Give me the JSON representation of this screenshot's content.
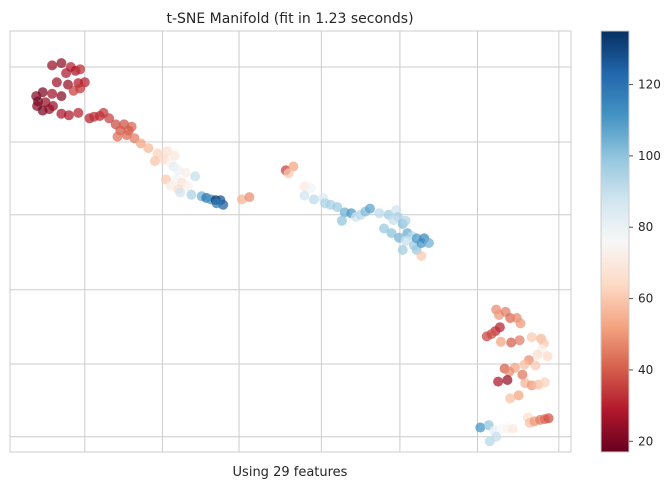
{
  "chart_data": {
    "type": "scatter",
    "title": "t-SNE Manifold (fit in 1.23 seconds)",
    "xlabel": "Using 29 features",
    "ylabel": "",
    "grid": true,
    "xlim": [
      0,
      60
    ],
    "ylim": [
      0,
      55
    ],
    "xgrid": [
      8,
      16.3,
      24.5,
      33.3,
      41.7,
      50,
      58.7
    ],
    "ygrid": [
      2,
      11.5,
      21.2,
      31,
      40.5,
      50.3
    ],
    "colorbar": {
      "min": 17,
      "max": 135,
      "ticks": [
        20,
        40,
        60,
        80,
        100,
        120
      ],
      "colors": [
        "#67001f",
        "#b2182b",
        "#d6604d",
        "#f4a582",
        "#fddbc7",
        "#f7f7f7",
        "#d1e5f0",
        "#92c5de",
        "#4393c3",
        "#2166ac",
        "#053061"
      ]
    },
    "points": [
      [
        4.5,
        50.5,
        25
      ],
      [
        5.5,
        50.8,
        23
      ],
      [
        6.5,
        50.3,
        30
      ],
      [
        7.0,
        49.8,
        27
      ],
      [
        7.5,
        50.0,
        32
      ],
      [
        6.0,
        49.5,
        28
      ],
      [
        5.0,
        48.3,
        26
      ],
      [
        6.2,
        48.0,
        24
      ],
      [
        7.3,
        48.2,
        29
      ],
      [
        8.0,
        48.3,
        30
      ],
      [
        7.5,
        47.5,
        33
      ],
      [
        6.8,
        47.2,
        35
      ],
      [
        5.5,
        46.5,
        22
      ],
      [
        4.5,
        46.8,
        26
      ],
      [
        3.5,
        47.0,
        20
      ],
      [
        2.8,
        46.5,
        21
      ],
      [
        3.0,
        45.8,
        19
      ],
      [
        3.8,
        45.7,
        24
      ],
      [
        2.9,
        45.2,
        22
      ],
      [
        3.5,
        44.6,
        19
      ],
      [
        4.2,
        44.8,
        23
      ],
      [
        4.6,
        45.2,
        25
      ],
      [
        5.5,
        44.2,
        27
      ],
      [
        6.3,
        44.0,
        28
      ],
      [
        7.3,
        44.3,
        30
      ],
      [
        8.5,
        43.6,
        30
      ],
      [
        9.0,
        43.8,
        32
      ],
      [
        9.6,
        43.9,
        31
      ],
      [
        10.0,
        44.3,
        33
      ],
      [
        10.6,
        43.6,
        35
      ],
      [
        11.3,
        42.8,
        37
      ],
      [
        12.2,
        42.8,
        38
      ],
      [
        13.0,
        42.5,
        41
      ],
      [
        12.7,
        42.0,
        40
      ],
      [
        11.8,
        42.0,
        39
      ],
      [
        12.5,
        41.4,
        42
      ],
      [
        11.5,
        41.2,
        43
      ],
      [
        13.3,
        41.0,
        45
      ],
      [
        14.0,
        40.3,
        52
      ],
      [
        14.8,
        39.7,
        56
      ],
      [
        15.8,
        39.0,
        62
      ],
      [
        16.8,
        39.3,
        66
      ],
      [
        17.6,
        38.7,
        69
      ],
      [
        16.5,
        38.2,
        64
      ],
      [
        15.5,
        38.0,
        59
      ],
      [
        17.2,
        37.8,
        74
      ],
      [
        17.5,
        37.3,
        82
      ],
      [
        18.0,
        36.8,
        79
      ],
      [
        18.8,
        36.5,
        72
      ],
      [
        19.8,
        36.0,
        90
      ],
      [
        17.8,
        35.6,
        78
      ],
      [
        16.7,
        35.6,
        60
      ],
      [
        18.4,
        35.2,
        67
      ],
      [
        17.2,
        34.8,
        71
      ],
      [
        18.0,
        34.3,
        65
      ],
      [
        19.0,
        34.7,
        73
      ],
      [
        18.2,
        33.9,
        88
      ],
      [
        19.4,
        33.6,
        95
      ],
      [
        20.5,
        33.4,
        105
      ],
      [
        21.0,
        33.2,
        120
      ],
      [
        21.5,
        33.0,
        112
      ],
      [
        22.0,
        32.9,
        135
      ],
      [
        22.5,
        32.9,
        128
      ],
      [
        22.8,
        32.3,
        125
      ],
      [
        22.1,
        32.5,
        118
      ],
      [
        24.8,
        33.0,
        55
      ],
      [
        25.6,
        33.3,
        48
      ],
      [
        29.5,
        36.8,
        35
      ],
      [
        30.3,
        37.3,
        52
      ],
      [
        29.8,
        36.4,
        60
      ],
      [
        31.5,
        34.7,
        70
      ],
      [
        32.2,
        34.5,
        78
      ],
      [
        31.5,
        33.5,
        88
      ],
      [
        32.5,
        33.0,
        92
      ],
      [
        33.5,
        33.2,
        85
      ],
      [
        33.7,
        32.5,
        95
      ],
      [
        34.3,
        32.3,
        96
      ],
      [
        35.0,
        32.0,
        98
      ],
      [
        35.8,
        31.3,
        105
      ],
      [
        36.5,
        31.2,
        110
      ],
      [
        35.5,
        30.2,
        100
      ],
      [
        37.0,
        30.7,
        88
      ],
      [
        37.5,
        31.0,
        93
      ],
      [
        38.0,
        31.4,
        102
      ],
      [
        38.5,
        31.8,
        108
      ],
      [
        39.5,
        31.2,
        92
      ],
      [
        40.5,
        31.0,
        97
      ],
      [
        41.3,
        31.6,
        88
      ],
      [
        41.5,
        30.7,
        96
      ],
      [
        41.0,
        30.3,
        90
      ],
      [
        42.0,
        29.8,
        102
      ],
      [
        42.3,
        30.2,
        94
      ],
      [
        40.0,
        29.2,
        99
      ],
      [
        40.8,
        28.6,
        101
      ],
      [
        41.6,
        28.0,
        104
      ],
      [
        42.5,
        28.6,
        106
      ],
      [
        43.0,
        28.2,
        92
      ],
      [
        42.3,
        27.6,
        90
      ],
      [
        43.2,
        27.0,
        98
      ],
      [
        42.0,
        26.4,
        97
      ],
      [
        43.5,
        26.4,
        99
      ],
      [
        44.0,
        27.3,
        112
      ],
      [
        43.5,
        27.9,
        110
      ],
      [
        44.3,
        27.9,
        115
      ],
      [
        44.8,
        27.3,
        105
      ],
      [
        44.0,
        25.6,
        60
      ],
      [
        52.0,
        18.6,
        48
      ],
      [
        52.3,
        17.9,
        50
      ],
      [
        53.0,
        18.3,
        45
      ],
      [
        53.5,
        17.5,
        42
      ],
      [
        54.2,
        17.5,
        47
      ],
      [
        54.6,
        16.8,
        50
      ],
      [
        52.4,
        16.3,
        30
      ],
      [
        51.9,
        15.8,
        32
      ],
      [
        51.5,
        15.4,
        38
      ],
      [
        51.0,
        15.1,
        36
      ],
      [
        52.5,
        14.4,
        52
      ],
      [
        53.6,
        14.3,
        40
      ],
      [
        54.5,
        14.6,
        45
      ],
      [
        55.8,
        15.0,
        60
      ],
      [
        56.8,
        14.8,
        56
      ],
      [
        57.1,
        14.2,
        60
      ],
      [
        56.9,
        13.4,
        72
      ],
      [
        56.4,
        12.7,
        66
      ],
      [
        57.5,
        12.5,
        64
      ],
      [
        55.5,
        12.0,
        48
      ],
      [
        56.2,
        11.3,
        60
      ],
      [
        55.0,
        11.4,
        58
      ],
      [
        54.0,
        11.0,
        52
      ],
      [
        52.9,
        10.9,
        40
      ],
      [
        53.4,
        10.5,
        48
      ],
      [
        54.8,
        10.1,
        44
      ],
      [
        52.2,
        9.2,
        28
      ],
      [
        53.2,
        9.4,
        24
      ],
      [
        55.1,
        9.0,
        55
      ],
      [
        55.8,
        8.7,
        50
      ],
      [
        56.5,
        8.8,
        58
      ],
      [
        57.2,
        9.1,
        62
      ],
      [
        54.4,
        7.4,
        52
      ],
      [
        53.5,
        7.0,
        58
      ],
      [
        55.4,
        4.5,
        65
      ],
      [
        55.6,
        3.8,
        58
      ],
      [
        56.1,
        4.0,
        50
      ],
      [
        56.7,
        4.2,
        45
      ],
      [
        57.2,
        4.3,
        42
      ],
      [
        57.6,
        4.4,
        38
      ],
      [
        50.3,
        3.2,
        112
      ],
      [
        51.2,
        3.5,
        100
      ],
      [
        51.8,
        2.8,
        82
      ],
      [
        52.6,
        3.0,
        76
      ],
      [
        53.2,
        3.1,
        74
      ],
      [
        52.0,
        2.0,
        90
      ],
      [
        51.3,
        1.4,
        93
      ],
      [
        53.8,
        3.0,
        70
      ]
    ]
  }
}
